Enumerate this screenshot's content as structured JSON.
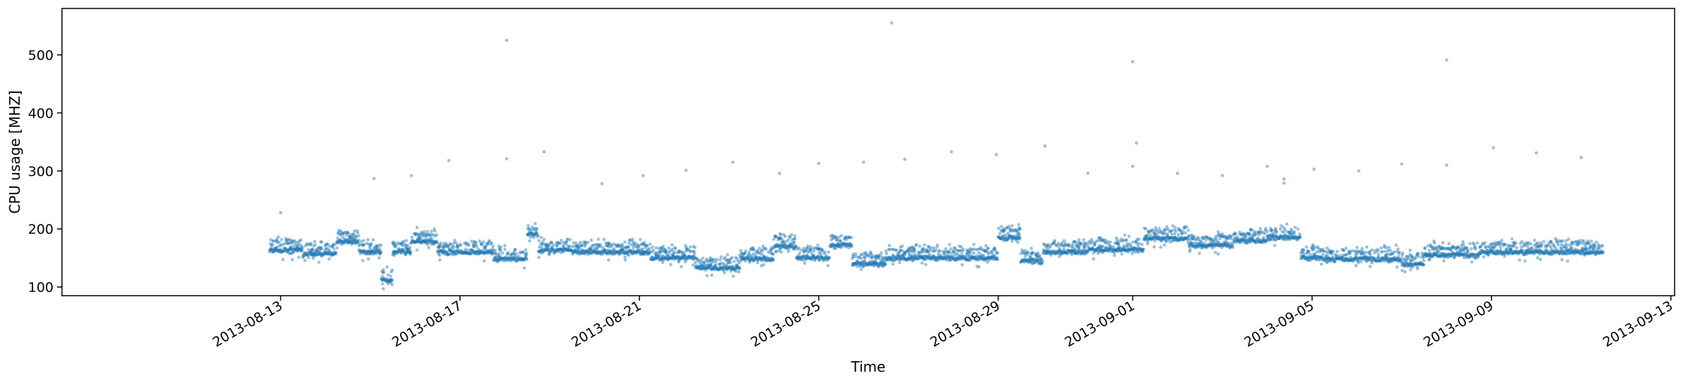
{
  "chart_data": {
    "type": "scatter",
    "xlabel": "Time",
    "ylabel": "CPU usage [MHZ]",
    "xlim": [
      "2013-08-08T03:00:00",
      "2013-09-13T02:00:00"
    ],
    "ylim": [
      85,
      580
    ],
    "x_ticks": [
      "2013-08-13",
      "2013-08-17",
      "2013-08-21",
      "2013-08-25",
      "2013-08-29",
      "2013-09-01",
      "2013-09-05",
      "2013-09-09",
      "2013-09-13"
    ],
    "y_ticks": [
      100,
      200,
      300,
      400,
      500
    ],
    "grid": false,
    "marker_color": "#1f77b4",
    "marker_alpha": 0.45,
    "x_range": [
      "2013-08-12T18:00:00",
      "2013-09-11T12:00:00"
    ],
    "series": [
      {
        "points_per_hour": 4,
        "baseline": [
          {
            "from": "2013-08-12T18:00:00",
            "to": "2013-08-13T12:00:00",
            "y": 163
          },
          {
            "from": "2013-08-13T12:00:00",
            "to": "2013-08-14T06:00:00",
            "y": 157
          },
          {
            "from": "2013-08-14T06:00:00",
            "to": "2013-08-14T18:00:00",
            "y": 178
          },
          {
            "from": "2013-08-14T18:00:00",
            "to": "2013-08-15T06:00:00",
            "y": 160
          },
          {
            "from": "2013-08-15T06:00:00",
            "to": "2013-08-15T12:00:00",
            "y": 112
          },
          {
            "from": "2013-08-15T12:00:00",
            "to": "2013-08-15T22:00:00",
            "y": 160
          },
          {
            "from": "2013-08-15T22:00:00",
            "to": "2013-08-16T12:00:00",
            "y": 178
          },
          {
            "from": "2013-08-16T12:00:00",
            "to": "2013-08-17T18:00:00",
            "y": 160
          },
          {
            "from": "2013-08-17T18:00:00",
            "to": "2013-08-18T12:00:00",
            "y": 148
          },
          {
            "from": "2013-08-18T12:00:00",
            "to": "2013-08-18T18:00:00",
            "y": 190
          },
          {
            "from": "2013-08-18T18:00:00",
            "to": "2013-08-19T12:00:00",
            "y": 163
          },
          {
            "from": "2013-08-19T12:00:00",
            "to": "2013-08-21T06:00:00",
            "y": 160
          },
          {
            "from": "2013-08-21T06:00:00",
            "to": "2013-08-22T06:00:00",
            "y": 150
          },
          {
            "from": "2013-08-22T06:00:00",
            "to": "2013-08-23T06:00:00",
            "y": 133
          },
          {
            "from": "2013-08-23T06:00:00",
            "to": "2013-08-24T00:00:00",
            "y": 148
          },
          {
            "from": "2013-08-24T00:00:00",
            "to": "2013-08-24T12:00:00",
            "y": 170
          },
          {
            "from": "2013-08-24T12:00:00",
            "to": "2013-08-25T06:00:00",
            "y": 150
          },
          {
            "from": "2013-08-25T06:00:00",
            "to": "2013-08-25T18:00:00",
            "y": 172
          },
          {
            "from": "2013-08-25T18:00:00",
            "to": "2013-08-26T12:00:00",
            "y": 140
          },
          {
            "from": "2013-08-26T12:00:00",
            "to": "2013-08-28T00:00:00",
            "y": 150
          },
          {
            "from": "2013-08-28T00:00:00",
            "to": "2013-08-29T00:00:00",
            "y": 150
          },
          {
            "from": "2013-08-29T00:00:00",
            "to": "2013-08-29T12:00:00",
            "y": 185
          },
          {
            "from": "2013-08-29T12:00:00",
            "to": "2013-08-30T00:00:00",
            "y": 145
          },
          {
            "from": "2013-08-30T00:00:00",
            "to": "2013-08-31T00:00:00",
            "y": 160
          },
          {
            "from": "2013-08-31T00:00:00",
            "to": "2013-09-01T06:00:00",
            "y": 164
          },
          {
            "from": "2013-09-01T06:00:00",
            "to": "2013-09-02T06:00:00",
            "y": 183
          },
          {
            "from": "2013-09-02T06:00:00",
            "to": "2013-09-03T06:00:00",
            "y": 172
          },
          {
            "from": "2013-09-03T06:00:00",
            "to": "2013-09-04T00:00:00",
            "y": 180
          },
          {
            "from": "2013-09-04T00:00:00",
            "to": "2013-09-04T18:00:00",
            "y": 185
          },
          {
            "from": "2013-09-04T18:00:00",
            "to": "2013-09-05T06:00:00",
            "y": 150
          },
          {
            "from": "2013-09-05T06:00:00",
            "to": "2013-09-07T00:00:00",
            "y": 148
          },
          {
            "from": "2013-09-07T00:00:00",
            "to": "2013-09-07T12:00:00",
            "y": 140
          },
          {
            "from": "2013-09-07T12:00:00",
            "to": "2013-09-08T18:00:00",
            "y": 155
          },
          {
            "from": "2013-09-08T18:00:00",
            "to": "2013-09-11T12:00:00",
            "y": 160
          }
        ],
        "outliers": [
          {
            "x": "2013-08-13T00:00:00",
            "y": 228
          },
          {
            "x": "2013-08-15T02:00:00",
            "y": 287
          },
          {
            "x": "2013-08-15T22:00:00",
            "y": 292
          },
          {
            "x": "2013-08-16T18:00:00",
            "y": 318
          },
          {
            "x": "2013-08-18T01:00:00",
            "y": 525
          },
          {
            "x": "2013-08-18T01:00:00",
            "y": 321
          },
          {
            "x": "2013-08-18T21:00:00",
            "y": 333
          },
          {
            "x": "2013-08-20T04:00:00",
            "y": 278
          },
          {
            "x": "2013-08-21T02:00:00",
            "y": 292
          },
          {
            "x": "2013-08-22T01:00:00",
            "y": 301
          },
          {
            "x": "2013-08-23T02:00:00",
            "y": 315
          },
          {
            "x": "2013-08-24T03:00:00",
            "y": 296
          },
          {
            "x": "2013-08-25T00:00:00",
            "y": 313
          },
          {
            "x": "2013-08-26T00:00:00",
            "y": 315
          },
          {
            "x": "2013-08-26T15:00:00",
            "y": 555
          },
          {
            "x": "2013-08-26T22:00:00",
            "y": 320
          },
          {
            "x": "2013-08-27T23:00:00",
            "y": 333
          },
          {
            "x": "2013-08-28T23:00:00",
            "y": 328
          },
          {
            "x": "2013-08-30T01:00:00",
            "y": 343
          },
          {
            "x": "2013-08-31T00:00:00",
            "y": 296
          },
          {
            "x": "2013-09-01T00:00:00",
            "y": 488
          },
          {
            "x": "2013-09-01T02:00:00",
            "y": 348
          },
          {
            "x": "2013-09-01T00:00:00",
            "y": 308
          },
          {
            "x": "2013-09-02T00:00:00",
            "y": 296
          },
          {
            "x": "2013-09-03T00:00:00",
            "y": 292
          },
          {
            "x": "2013-09-04T00:00:00",
            "y": 308
          },
          {
            "x": "2013-09-04T09:00:00",
            "y": 286
          },
          {
            "x": "2013-09-04T09:00:00",
            "y": 279
          },
          {
            "x": "2013-09-05T01:00:00",
            "y": 303
          },
          {
            "x": "2013-09-06T01:00:00",
            "y": 300
          },
          {
            "x": "2013-09-07T00:00:00",
            "y": 312
          },
          {
            "x": "2013-09-08T00:00:00",
            "y": 310
          },
          {
            "x": "2013-09-08T00:00:00",
            "y": 491
          },
          {
            "x": "2013-09-09T01:00:00",
            "y": 340
          },
          {
            "x": "2013-09-10T00:00:00",
            "y": 331
          },
          {
            "x": "2013-09-11T00:00:00",
            "y": 323
          }
        ]
      }
    ]
  }
}
